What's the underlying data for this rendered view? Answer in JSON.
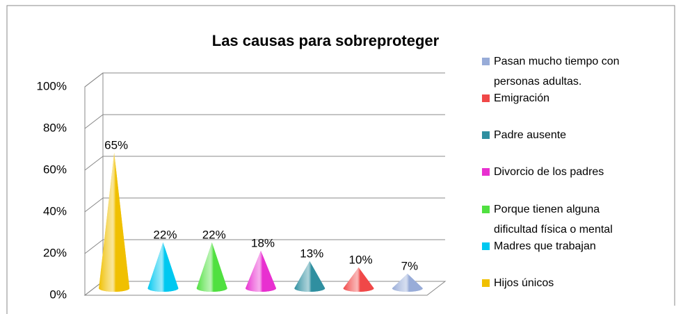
{
  "chart_data": {
    "type": "cone",
    "title": "Las causas para sobreproteger",
    "categories": [
      "Hijos únicos",
      "Madres que trabajan",
      "Porque tienen alguna dificultad física o mental",
      "Divorcio de los padres",
      "Padre ausente",
      "Emigración",
      "Pasan mucho tiempo con personas adultas."
    ],
    "values": [
      65,
      22,
      22,
      18,
      13,
      10,
      7
    ],
    "value_labels": [
      "65%",
      "22%",
      "22%",
      "18%",
      "13%",
      "10%",
      "7%"
    ],
    "colors": [
      "#f0c000",
      "#00c8f0",
      "#50e040",
      "#e830d0",
      "#2f8fa0",
      "#f04848",
      "#98acd8"
    ],
    "ylim": [
      0,
      100
    ],
    "yticks": [
      {
        "value": 0,
        "label": "0%"
      },
      {
        "value": 20,
        "label": "20%"
      },
      {
        "value": 40,
        "label": "40%"
      },
      {
        "value": 60,
        "label": "60%"
      },
      {
        "value": 80,
        "label": "80%"
      },
      {
        "value": 100,
        "label": "100%"
      }
    ],
    "grid": true,
    "legend": "right"
  }
}
